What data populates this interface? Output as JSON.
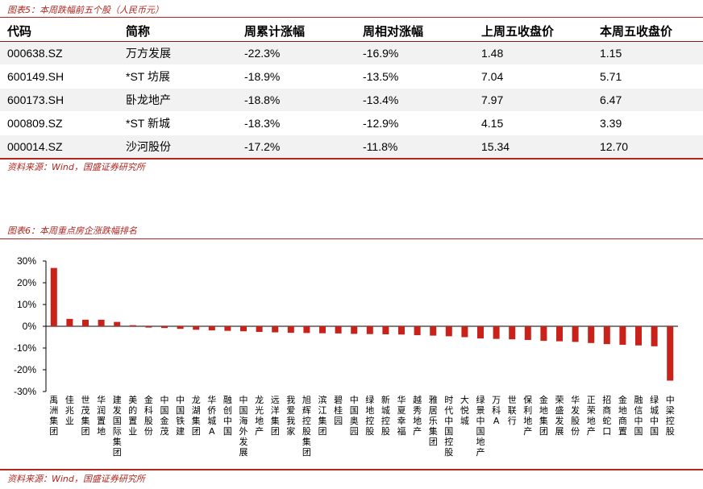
{
  "table_section": {
    "caption": "图表5：本周跌幅前五个股（人民币元）",
    "headers": [
      "代码",
      "简称",
      "周累计涨幅",
      "周相对涨幅",
      "上周五收盘价",
      "本周五收盘价"
    ],
    "rows": [
      [
        "000638.SZ",
        "万方发展",
        "-22.3%",
        "-16.9%",
        "1.48",
        "1.15"
      ],
      [
        "600149.SH",
        "*ST 坊展",
        "-18.9%",
        "-13.5%",
        "7.04",
        "5.71"
      ],
      [
        "600173.SH",
        "卧龙地产",
        "-18.8%",
        "-13.4%",
        "7.97",
        "6.47"
      ],
      [
        "000809.SZ",
        "*ST 新城",
        "-18.3%",
        "-12.9%",
        "4.15",
        "3.39"
      ],
      [
        "000014.SZ",
        "沙河股份",
        "-17.2%",
        "-11.8%",
        "15.34",
        "12.70"
      ]
    ],
    "source": "资料来源：Wind，国盛证券研究所"
  },
  "chart_section": {
    "caption": "图表6：本周重点房企涨跌幅排名",
    "source": "资料来源：Wind，国盛证券研究所"
  },
  "chart_data": {
    "type": "bar",
    "title": "图表6：本周重点房企涨跌幅排名",
    "categories": [
      "禹洲集团",
      "佳兆业",
      "世茂集团",
      "华润置地",
      "建发国际集团",
      "美的置业",
      "金科股份",
      "中国金茂",
      "中国铁建",
      "龙湖集团",
      "华侨城A",
      "融创中国",
      "中国海外发展",
      "龙光地产",
      "远洋集团",
      "我爱我家",
      "旭辉控股集团",
      "滨江集团",
      "碧桂园",
      "中国奥园",
      "绿地控股",
      "新城控股",
      "华夏幸福",
      "越秀地产",
      "雅居乐集团",
      "时代中国控股",
      "大悦城",
      "绿景中国地产",
      "万科A",
      "世联行",
      "保利地产",
      "金地集团",
      "荣盛发展",
      "华发股份",
      "正荣地产",
      "招商蛇口",
      "金地商置",
      "融信中国",
      "绿城中国",
      "中梁控股"
    ],
    "values": [
      26.8,
      3.4,
      3.0,
      3.0,
      2.0,
      0.5,
      -0.6,
      -0.8,
      -1.2,
      -1.6,
      -1.9,
      -2.1,
      -2.3,
      -2.6,
      -2.8,
      -3.0,
      -3.1,
      -3.2,
      -3.3,
      -3.5,
      -3.6,
      -3.7,
      -3.8,
      -4.1,
      -4.3,
      -4.6,
      -5.0,
      -5.6,
      -5.8,
      -6.0,
      -6.3,
      -6.7,
      -6.9,
      -7.2,
      -7.7,
      -8.2,
      -8.5,
      -8.8,
      -9.2,
      -25.0
    ],
    "ylim": [
      -30,
      30
    ],
    "yticks": [
      -30,
      -20,
      -10,
      0,
      10,
      20,
      30
    ],
    "ytick_labels": [
      "-30%",
      "-20%",
      "-10%",
      "0%",
      "10%",
      "20%",
      "30%"
    ],
    "bar_color": "#c8221a",
    "grid": false
  }
}
